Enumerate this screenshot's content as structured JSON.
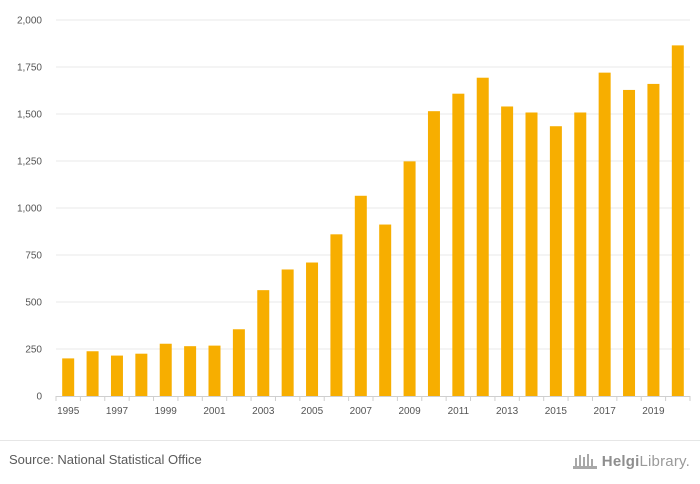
{
  "chart_data": {
    "type": "bar",
    "title": "",
    "xlabel": "",
    "ylabel": "",
    "ylim": [
      0,
      2000
    ],
    "yticks": [
      "0",
      "250",
      "500",
      "750",
      "1,000",
      "1,250",
      "1,500",
      "1,750",
      "2,000"
    ],
    "ytick_values": [
      0,
      250,
      500,
      750,
      1000,
      1250,
      1500,
      1750,
      2000
    ],
    "xtick_labels": [
      "1995",
      "1997",
      "1999",
      "2001",
      "2003",
      "2005",
      "2007",
      "2009",
      "2011",
      "2013",
      "2015",
      "2017",
      "2019"
    ],
    "categories": [
      "1995",
      "1996",
      "1997",
      "1998",
      "1999",
      "2000",
      "2001",
      "2002",
      "2003",
      "2004",
      "2005",
      "2006",
      "2007",
      "2008",
      "2009",
      "2010",
      "2011",
      "2012",
      "2013",
      "2014",
      "2015",
      "2016",
      "2017",
      "2018",
      "2019",
      "2020"
    ],
    "values": [
      200,
      238,
      215,
      225,
      278,
      265,
      268,
      355,
      563,
      673,
      710,
      860,
      1065,
      912,
      1248,
      1515,
      1608,
      1693,
      1540,
      1508,
      1435,
      1508,
      1720,
      1628,
      1660,
      1865
    ],
    "bar_color": "#f7ae00",
    "grid": true
  },
  "footer": {
    "source": "Source: National Statistical Office",
    "brand_bold": "Helgi",
    "brand_rest": "Library."
  }
}
